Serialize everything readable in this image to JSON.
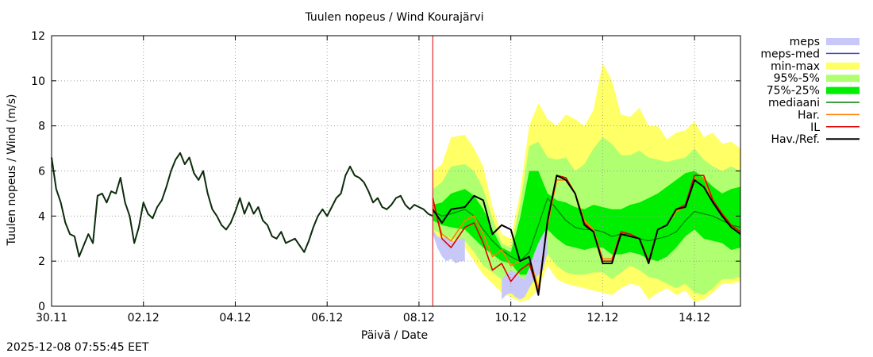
{
  "timestamp": "2025-12-08 07:55:45 EET",
  "chart_data": {
    "type": "line",
    "title": "Tuulen nopeus / Wind  Kourajärvi",
    "xlabel": "Päivä / Date",
    "ylabel": "Tuulen nopeus / Wind (m/s)",
    "xlim": [
      0,
      15
    ],
    "ylim": [
      0,
      12
    ],
    "x_unit": "days since 30.11 00:00",
    "x_ticks": [
      {
        "x": 0,
        "label": "30.11"
      },
      {
        "x": 2,
        "label": "02.12"
      },
      {
        "x": 4,
        "label": "04.12"
      },
      {
        "x": 6,
        "label": "06.12"
      },
      {
        "x": 8,
        "label": "08.12"
      },
      {
        "x": 10,
        "label": "10.12"
      },
      {
        "x": 12,
        "label": "12.12"
      },
      {
        "x": 14,
        "label": "14.12"
      }
    ],
    "y_ticks": [
      0,
      2,
      4,
      6,
      8,
      10,
      12
    ],
    "grid": true,
    "now_marker_x": 8.3,
    "legend": [
      {
        "label": "meps",
        "kind": "band",
        "color": "#c8c8f8"
      },
      {
        "label": "meps-med",
        "kind": "line",
        "color": "#4040c0"
      },
      {
        "label": "min-max",
        "kind": "band",
        "color": "#ffff66"
      },
      {
        "label": "95%-5%",
        "kind": "band",
        "color": "#b0ff70"
      },
      {
        "label": "75%-25%",
        "kind": "band",
        "color": "#00ee00"
      },
      {
        "label": "mediaani",
        "kind": "line",
        "color": "#008000"
      },
      {
        "label": "Har.",
        "kind": "line",
        "color": "#ff8000"
      },
      {
        "label": "IL",
        "kind": "line",
        "color": "#e00000"
      },
      {
        "label": "Hav./Ref.",
        "kind": "line",
        "color": "#000000"
      }
    ],
    "observed": {
      "name": "Hav./Ref.",
      "x": [
        0,
        0.1,
        0.2,
        0.3,
        0.4,
        0.5,
        0.6,
        0.7,
        0.8,
        0.9,
        1.0,
        1.1,
        1.2,
        1.3,
        1.4,
        1.5,
        1.6,
        1.7,
        1.8,
        1.9,
        2.0,
        2.1,
        2.2,
        2.3,
        2.4,
        2.5,
        2.6,
        2.7,
        2.8,
        2.9,
        3.0,
        3.1,
        3.2,
        3.3,
        3.4,
        3.5,
        3.6,
        3.7,
        3.8,
        3.9,
        4.0,
        4.1,
        4.2,
        4.3,
        4.4,
        4.5,
        4.6,
        4.7,
        4.8,
        4.9,
        5.0,
        5.1,
        5.2,
        5.3,
        5.4,
        5.5,
        5.6,
        5.7,
        5.8,
        5.9,
        6.0,
        6.1,
        6.2,
        6.3,
        6.4,
        6.5,
        6.6,
        6.7,
        6.8,
        6.9,
        7.0,
        7.1,
        7.2,
        7.3,
        7.4,
        7.5,
        7.6,
        7.7,
        7.8,
        7.9,
        8.0,
        8.1,
        8.2,
        8.3
      ],
      "values": [
        6.6,
        5.2,
        4.6,
        3.7,
        3.2,
        3.1,
        2.2,
        2.7,
        3.2,
        2.8,
        4.9,
        5.0,
        4.6,
        5.1,
        5.0,
        5.7,
        4.6,
        4.0,
        2.8,
        3.5,
        4.6,
        4.1,
        3.9,
        4.4,
        4.7,
        5.3,
        6.0,
        6.5,
        6.8,
        6.3,
        6.6,
        5.9,
        5.6,
        6.0,
        5.0,
        4.3,
        4.0,
        3.6,
        3.4,
        3.7,
        4.2,
        4.8,
        4.1,
        4.6,
        4.1,
        4.4,
        3.8,
        3.6,
        3.1,
        3.0,
        3.3,
        2.8,
        2.9,
        3.0,
        2.7,
        2.4,
        2.9,
        3.5,
        4.0,
        4.3,
        4.0,
        4.4,
        4.8,
        5.0,
        5.8,
        6.2,
        5.8,
        5.7,
        5.5,
        5.1,
        4.6,
        4.8,
        4.4,
        4.3,
        4.5,
        4.8,
        4.9,
        4.5,
        4.3,
        4.5,
        4.4,
        4.3,
        4.1,
        4.0
      ]
    },
    "forecast": {
      "x": [
        8.3,
        8.5,
        8.7,
        9.0,
        9.2,
        9.4,
        9.6,
        9.8,
        10.0,
        10.2,
        10.4,
        10.6,
        10.8,
        11.0,
        11.2,
        11.4,
        11.6,
        11.8,
        12.0,
        12.2,
        12.4,
        12.6,
        12.8,
        13.0,
        13.2,
        13.4,
        13.6,
        13.8,
        14.0,
        14.2,
        14.4,
        14.6,
        14.8,
        15.0
      ],
      "min_max": {
        "lower": [
          3.2,
          3.0,
          2.8,
          2.6,
          2.0,
          1.4,
          1.0,
          0.6,
          0.4,
          0.2,
          0.3,
          0.8,
          1.8,
          1.2,
          1.0,
          0.9,
          0.8,
          0.7,
          0.6,
          0.5,
          0.8,
          1.0,
          0.9,
          0.3,
          0.6,
          0.8,
          0.5,
          0.7,
          0.2,
          0.3,
          0.6,
          1.0,
          1.0,
          1.1
        ],
        "upper": [
          6.0,
          6.3,
          7.5,
          7.6,
          7.0,
          6.2,
          4.4,
          3.2,
          3.0,
          5.0,
          8.0,
          9.0,
          8.3,
          8.0,
          8.5,
          8.3,
          8.0,
          8.7,
          10.8,
          10.0,
          8.5,
          8.4,
          8.8,
          8.0,
          8.0,
          7.4,
          7.7,
          7.8,
          8.2,
          7.5,
          7.7,
          7.2,
          7.3,
          7.0
        ]
      },
      "p95_5": {
        "lower": [
          3.4,
          3.2,
          3.0,
          2.9,
          2.4,
          1.8,
          1.5,
          1.2,
          1.0,
          0.7,
          0.8,
          1.4,
          2.3,
          1.8,
          1.5,
          1.4,
          1.4,
          1.5,
          1.5,
          1.2,
          1.5,
          1.8,
          1.6,
          1.3,
          1.2,
          1.0,
          0.8,
          1.0,
          0.6,
          0.5,
          0.8,
          1.2,
          1.2,
          1.3
        ],
        "upper": [
          5.2,
          5.5,
          6.2,
          6.3,
          6.0,
          5.2,
          3.9,
          2.8,
          2.6,
          4.5,
          7.1,
          7.3,
          6.6,
          6.5,
          6.6,
          6.0,
          6.3,
          7.0,
          7.5,
          7.2,
          6.7,
          6.7,
          6.9,
          6.6,
          6.5,
          6.4,
          6.5,
          6.6,
          7.0,
          6.5,
          6.2,
          6.0,
          6.2,
          6.0
        ]
      },
      "p75_25": {
        "lower": [
          3.8,
          3.6,
          3.5,
          3.4,
          3.0,
          2.6,
          2.3,
          2.0,
          1.9,
          1.4,
          1.4,
          2.6,
          3.4,
          3.0,
          2.7,
          2.6,
          2.5,
          2.6,
          2.6,
          2.3,
          2.3,
          2.4,
          2.3,
          2.1,
          2.0,
          2.2,
          2.6,
          3.1,
          3.4,
          3.0,
          2.9,
          2.8,
          2.5,
          2.6
        ],
        "upper": [
          4.5,
          4.6,
          5.0,
          5.2,
          4.9,
          4.3,
          3.4,
          2.6,
          2.4,
          3.9,
          6.0,
          6.0,
          5.0,
          4.7,
          4.6,
          4.4,
          4.3,
          4.5,
          4.4,
          4.3,
          4.3,
          4.5,
          4.6,
          4.8,
          5.0,
          5.3,
          5.6,
          5.9,
          6.0,
          5.7,
          5.3,
          5.0,
          5.2,
          5.3
        ]
      },
      "median": [
        4.2,
        4.0,
        4.1,
        4.3,
        4.0,
        3.4,
        2.9,
        2.5,
        2.2,
        2.0,
        2.4,
        3.6,
        4.8,
        4.3,
        3.8,
        3.5,
        3.4,
        3.4,
        3.3,
        3.1,
        3.2,
        3.2,
        3.0,
        2.9,
        3.0,
        3.1,
        3.3,
        3.8,
        4.2,
        4.1,
        4.0,
        3.8,
        3.6,
        3.5
      ],
      "Hav./Ref.": [
        4.3,
        3.7,
        4.3,
        4.4,
        4.9,
        4.7,
        3.2,
        3.6,
        3.4,
        2.0,
        2.2,
        0.5,
        3.8,
        5.8,
        5.6,
        5.0,
        3.6,
        3.3,
        1.9,
        1.9,
        3.2,
        3.1,
        3.0,
        1.9,
        3.4,
        3.6,
        4.3,
        4.4,
        5.6,
        5.3,
        4.6,
        4.0,
        3.5,
        3.2
      ],
      "IL": [
        4.8,
        3.0,
        2.6,
        3.5,
        3.7,
        2.8,
        1.6,
        1.9,
        1.1,
        1.6,
        1.9,
        0.6,
        3.8,
        5.8,
        5.7,
        5.0,
        3.7,
        3.3,
        2.0,
        2.0,
        3.3,
        3.2,
        3.0,
        2.0,
        3.4,
        3.6,
        4.3,
        4.5,
        5.8,
        5.8,
        4.7,
        4.1,
        3.6,
        3.3
      ],
      "Har.": [
        4.5,
        3.2,
        2.9,
        3.8,
        4.0,
        3.2,
        2.2,
        2.5,
        1.8,
        2.0,
        2.2,
        0.8,
        3.6,
        5.6,
        5.6,
        5.0,
        3.8,
        3.4,
        2.1,
        2.1,
        3.3,
        3.2,
        3.0,
        2.0,
        3.4,
        3.6,
        4.2,
        4.4,
        5.7,
        5.7,
        4.6,
        4.0,
        3.6,
        3.3
      ]
    },
    "meps": {
      "x": [
        8.3,
        8.4,
        8.5,
        8.6,
        8.7,
        8.8,
        8.9,
        9.0
      ],
      "lower": [
        3.2,
        2.6,
        2.2,
        2.0,
        2.1,
        1.9,
        2.0,
        2.0
      ],
      "upper": [
        3.4,
        3.1,
        3.0,
        3.1,
        2.9,
        2.9,
        3.0,
        3.0
      ]
    },
    "meps2": {
      "x": [
        9.8,
        9.9,
        10.0,
        10.1,
        10.2,
        10.3,
        10.4,
        10.5,
        10.6,
        10.7,
        10.8
      ],
      "lower": [
        0.3,
        0.5,
        0.6,
        0.4,
        0.3,
        0.4,
        0.8,
        1.2,
        1.4,
        1.6,
        2.4
      ],
      "upper": [
        1.2,
        1.4,
        1.6,
        1.5,
        1.3,
        1.2,
        1.7,
        2.3,
        2.8,
        3.2,
        3.5
      ]
    }
  }
}
